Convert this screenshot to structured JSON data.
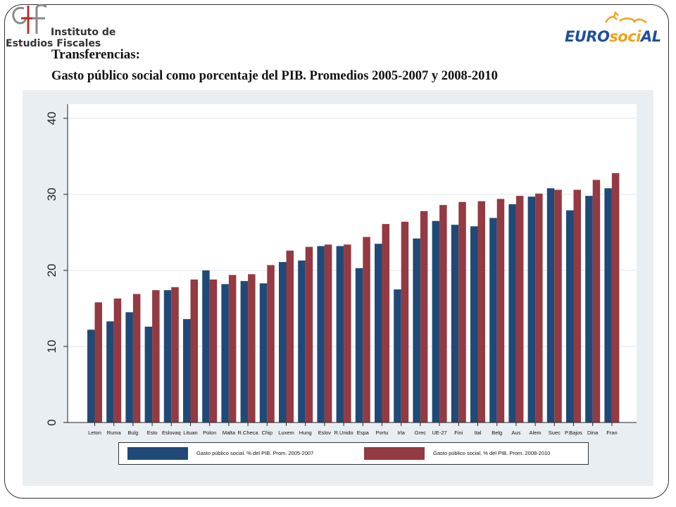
{
  "header": {
    "org_logo": {
      "line1": "Instituto de",
      "line2": "Estudios Fiscales"
    },
    "partner_logo": {
      "text_a": "EURO",
      "text_b": "soci",
      "text_c": "AL"
    },
    "title": "Transferencias:",
    "subtitle": "Gasto público social como porcentaje del PIB. Promedios 2005-2007 y 2008-2010"
  },
  "colors": {
    "series1": "#1f4a78",
    "series2": "#943a42",
    "chart_bg": "#e9eef2",
    "grid": "#e9eef2"
  },
  "chart_data": {
    "type": "bar",
    "title": "",
    "xlabel": "",
    "ylabel": "",
    "ylim": [
      0,
      40
    ],
    "yticks": [
      0,
      10,
      20,
      30,
      40
    ],
    "grid": true,
    "legend_position": "bottom",
    "categories": [
      "Leton",
      "Ruma",
      "Bulg",
      "Esto",
      "Eslovaq",
      "Lituan",
      "Polon",
      "Malta",
      "R.Checa",
      "Chip",
      "Luxem",
      "Hung",
      "Eslov",
      "R.Unido",
      "Espa",
      "Portu",
      "Irla",
      "Grec",
      "UE-27",
      "Fini",
      "Ital",
      "Belg",
      "Aus",
      "Alem",
      "Suec",
      "P.Bajos",
      "Dina",
      "Fran"
    ],
    "series": [
      {
        "name": "Gasto público social. % del PIB. Prom. 2005-2007",
        "values": [
          12.2,
          13.3,
          14.5,
          12.6,
          17.4,
          13.6,
          20.0,
          18.2,
          18.6,
          18.3,
          21.1,
          21.3,
          23.2,
          23.2,
          20.3,
          23.5,
          17.5,
          24.2,
          26.5,
          26.0,
          25.8,
          26.9,
          28.7,
          29.7,
          30.8,
          27.9,
          29.8,
          30.8
        ]
      },
      {
        "name": "Gasto público social. % del PIB. Prom. 2008-2010",
        "values": [
          15.8,
          16.3,
          16.9,
          17.4,
          17.8,
          18.8,
          18.8,
          19.4,
          19.5,
          20.7,
          22.6,
          23.1,
          23.4,
          23.4,
          24.4,
          26.1,
          26.4,
          27.8,
          28.6,
          29.0,
          29.1,
          29.4,
          29.8,
          30.1,
          30.6,
          30.6,
          31.9,
          32.8
        ]
      }
    ]
  }
}
